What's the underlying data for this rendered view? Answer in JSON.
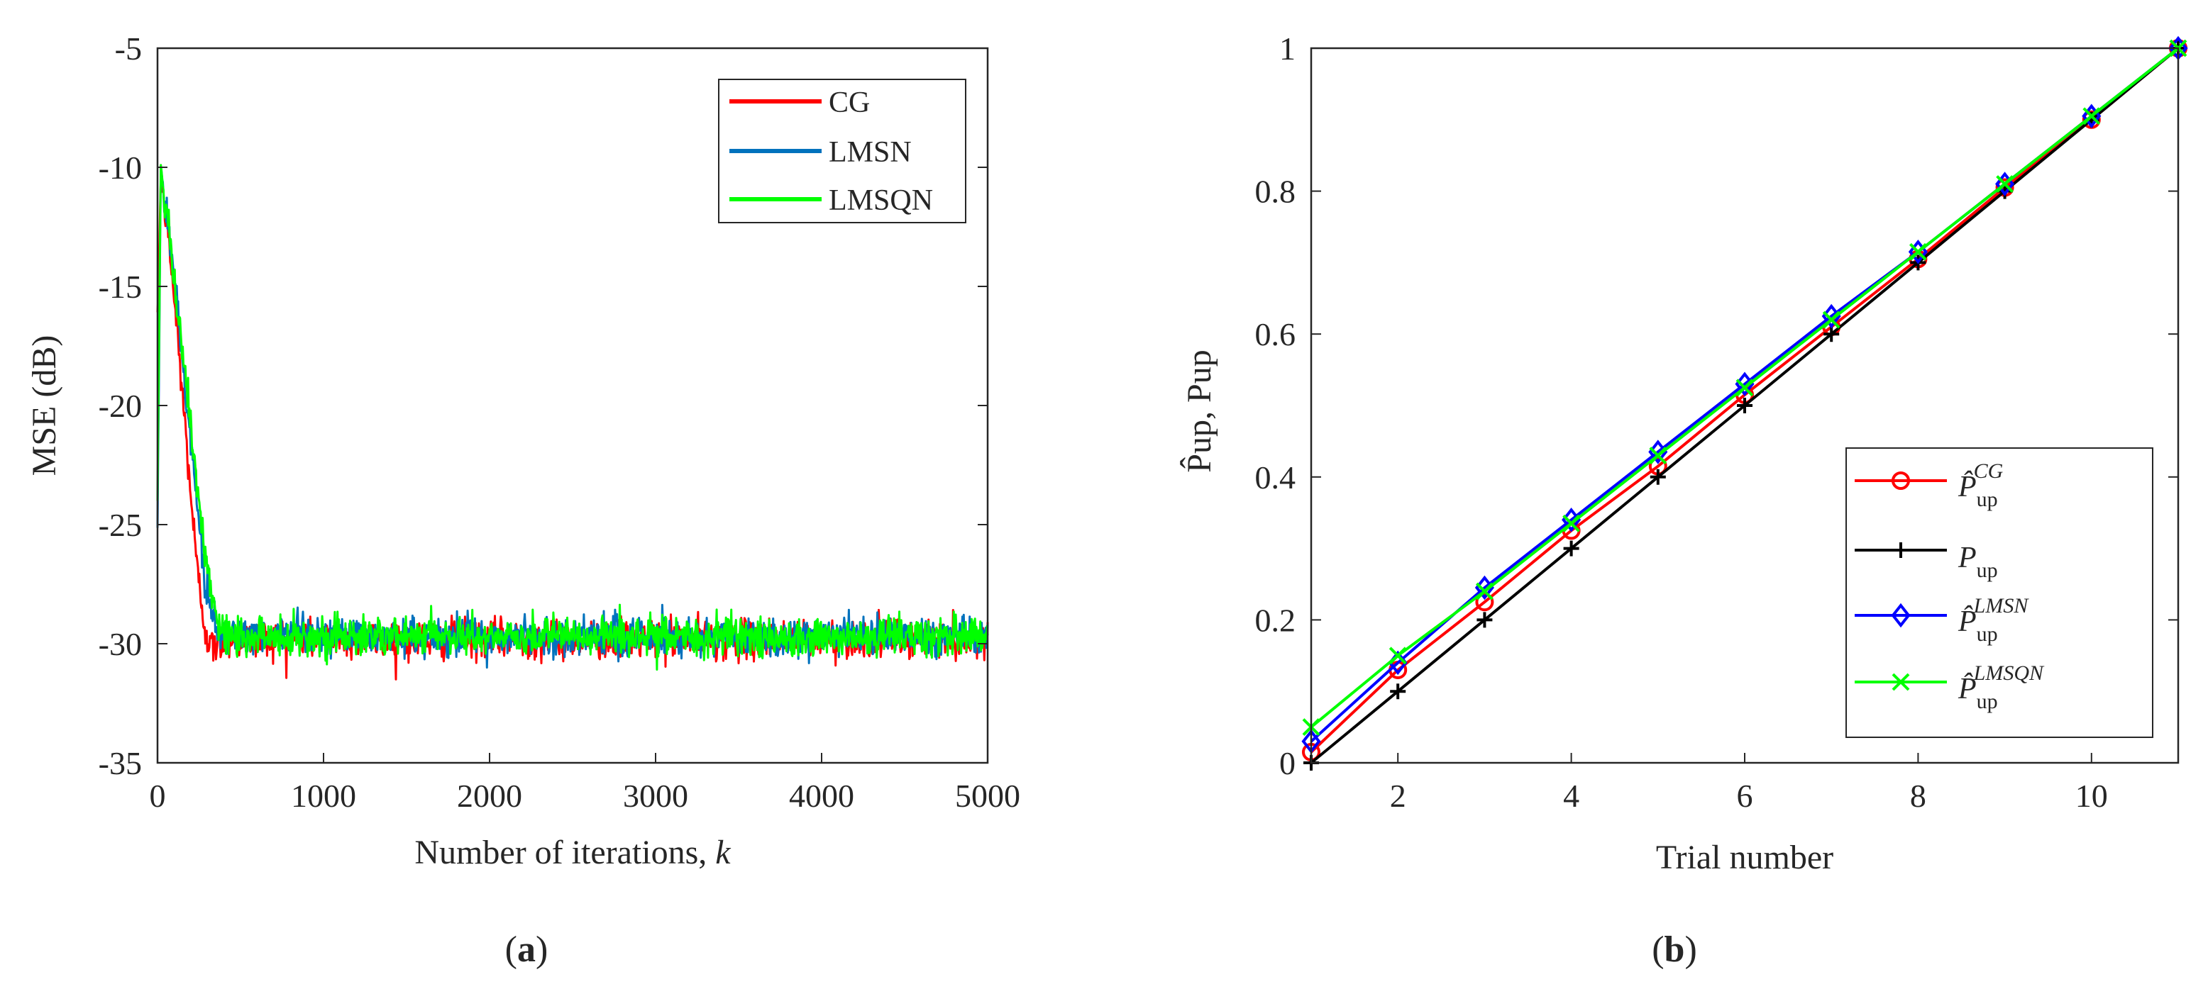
{
  "figure": {
    "colors": {
      "CG": "#ff0000",
      "LMSN": "#0072bd",
      "LMSQN": "#00ff00",
      "Pup": "#000000",
      "Pup_CG": "#ff0000",
      "Pup_LMSN": "#0000ff",
      "Pup_LMSQN": "#00ff00",
      "axis": "#262626"
    }
  },
  "chart_data": [
    {
      "id": "a",
      "type": "line",
      "panel_label": "(a)",
      "panel_label_open": "(",
      "panel_label_letter": "a",
      "panel_label_close": ")",
      "title": "",
      "xlabel": "Number of iterations, ",
      "xlabel_var": "k",
      "ylabel": "MSE (dB)",
      "xlim": [
        0,
        5000
      ],
      "ylim": [
        -35,
        -5
      ],
      "xticks": [
        0,
        1000,
        2000,
        3000,
        4000,
        5000
      ],
      "xtick_labels": [
        "0",
        "1000",
        "2000",
        "3000",
        "4000",
        "5000"
      ],
      "yticks": [
        -35,
        -30,
        -25,
        -20,
        -15,
        -10,
        -5
      ],
      "ytick_labels": [
        "-35",
        "-30",
        "-25",
        "-20",
        "-15",
        "-10",
        "-5"
      ],
      "legend_position": "top-right",
      "series": [
        {
          "name": "CG",
          "color": "#ff0000",
          "description": "noisy learning curve",
          "start_value": -16.5,
          "peak_value": -10.0,
          "decay_points": [
            [
              0,
              -16.5
            ],
            [
              20,
              -10.5
            ],
            [
              60,
              -12.5
            ],
            [
              120,
              -17
            ],
            [
              180,
              -22
            ],
            [
              240,
              -27
            ],
            [
              290,
              -29.5
            ],
            [
              330,
              -30.2
            ],
            [
              400,
              -29.8
            ]
          ],
          "steady_state_mean": -29.8,
          "steady_state_spread": 0.9,
          "final_value": -29.8
        },
        {
          "name": "LMSN",
          "color": "#0072bd",
          "description": "noisy learning curve",
          "start_value": -25.0,
          "peak_value": -10.0,
          "decay_points": [
            [
              0,
              -25
            ],
            [
              20,
              -10.2
            ],
            [
              80,
              -13
            ],
            [
              150,
              -18
            ],
            [
              220,
              -23
            ],
            [
              290,
              -27.5
            ],
            [
              350,
              -29.5
            ],
            [
              420,
              -29.8
            ]
          ],
          "steady_state_mean": -29.7,
          "steady_state_spread": 0.9,
          "final_value": -29.7
        },
        {
          "name": "LMSQN",
          "color": "#00ff00",
          "description": "noisy learning curve",
          "start_value": -24.0,
          "peak_value": -10.0,
          "decay_points": [
            [
              0,
              -24
            ],
            [
              20,
              -10
            ],
            [
              80,
              -13.5
            ],
            [
              160,
              -18.5
            ],
            [
              240,
              -23.5
            ],
            [
              310,
              -27.5
            ],
            [
              370,
              -29.3
            ],
            [
              450,
              -29.7
            ]
          ],
          "steady_state_mean": -29.7,
          "steady_state_spread": 0.9,
          "final_value": -29.7
        }
      ]
    },
    {
      "id": "b",
      "type": "line",
      "panel_label": "(b)",
      "panel_label_open": "(",
      "panel_label_letter": "b",
      "panel_label_close": ")",
      "title": "",
      "xlabel": "Trial number",
      "ylabel": "P̂up, Pup",
      "xlim": [
        1,
        11
      ],
      "ylim": [
        0,
        1
      ],
      "xticks": [
        2,
        4,
        6,
        8,
        10
      ],
      "xtick_labels": [
        "2",
        "4",
        "6",
        "8",
        "10"
      ],
      "yticks": [
        0,
        0.2,
        0.4,
        0.6,
        0.8,
        1
      ],
      "ytick_labels": [
        "0",
        "0.2",
        "0.4",
        "0.6",
        "0.8",
        "1"
      ],
      "legend_position": "bottom-right",
      "x": [
        1,
        2,
        3,
        4,
        5,
        6,
        7,
        8,
        9,
        10,
        11
      ],
      "series": [
        {
          "name": "P̂up^CG",
          "legend_base": "P̂",
          "legend_sub": "up",
          "legend_sup": "CG",
          "color": "#ff0000",
          "marker": "circle",
          "values": [
            0.015,
            0.13,
            0.225,
            0.325,
            0.415,
            0.515,
            0.61,
            0.705,
            0.805,
            0.9,
            1.0
          ]
        },
        {
          "name": "Pup",
          "legend_base": "P",
          "legend_sub": "up",
          "legend_sup": "",
          "color": "#000000",
          "marker": "plus",
          "values": [
            0.0,
            0.1,
            0.2,
            0.3,
            0.4,
            0.5,
            0.6,
            0.7,
            0.8,
            0.9,
            1.0
          ]
        },
        {
          "name": "P̂up^LMSN",
          "legend_base": "P̂",
          "legend_sub": "up",
          "legend_sup": "LMSN",
          "color": "#0000ff",
          "marker": "diamond",
          "values": [
            0.03,
            0.14,
            0.245,
            0.34,
            0.435,
            0.53,
            0.625,
            0.715,
            0.81,
            0.905,
            1.0
          ]
        },
        {
          "name": "P̂up^LMSQN",
          "legend_base": "P̂",
          "legend_sub": "up",
          "legend_sup": "LMSQN",
          "color": "#00ff00",
          "marker": "x",
          "values": [
            0.05,
            0.15,
            0.24,
            0.335,
            0.43,
            0.525,
            0.62,
            0.715,
            0.81,
            0.905,
            1.0
          ]
        }
      ]
    }
  ]
}
